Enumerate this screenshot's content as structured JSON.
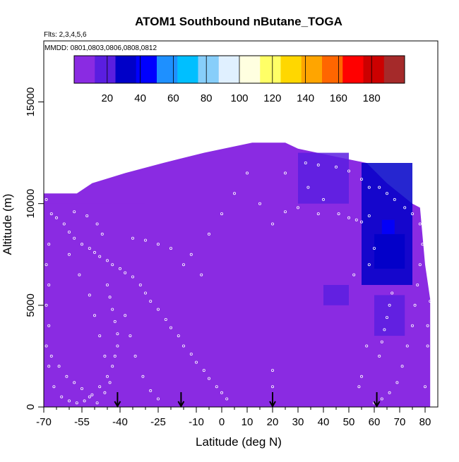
{
  "chart_data": {
    "type": "heatmap",
    "title": "ATOM1 Southbound nButane_TOGA",
    "flights_label": "Flts: 2,3,4,5,6",
    "dates_label": "MMDD: 0801,0803,0806,0808,0812",
    "xlabel": "Latitude (deg N)",
    "ylabel": "Altitude (m)",
    "xlim": [
      -70,
      85
    ],
    "ylim": [
      0,
      18000
    ],
    "x_ticks": [
      -70,
      -55,
      -40,
      -25,
      -10,
      0,
      10,
      20,
      30,
      40,
      50,
      60,
      70,
      80
    ],
    "x_minor_ticks": [
      -65,
      -60,
      -50,
      -45,
      -35,
      -30,
      -20,
      -15,
      -5,
      5,
      15,
      25,
      35,
      45,
      55,
      65,
      75
    ],
    "y_ticks": [
      0,
      5000,
      10000,
      15000
    ],
    "colorbar": {
      "min": 0,
      "max": 200,
      "tick_values": [
        20,
        40,
        60,
        80,
        100,
        120,
        140,
        160,
        180
      ],
      "colors": [
        "#8a2be2",
        "#5a1ee0",
        "#0000c8",
        "#0000ff",
        "#1e90ff",
        "#00bfff",
        "#87cefa",
        "#e0f0ff",
        "#ffffe0",
        "#ffff66",
        "#ffd700",
        "#ffa500",
        "#ff6600",
        "#ff0000",
        "#cc0000",
        "#a52a2a"
      ]
    },
    "profile_top": [
      [
        -70,
        10500
      ],
      [
        -57,
        10500
      ],
      [
        -51,
        11000
      ],
      [
        -38,
        11500
      ],
      [
        -23,
        12000
      ],
      [
        -7,
        12500
      ],
      [
        12,
        13000
      ],
      [
        25,
        13000
      ],
      [
        30,
        12700
      ],
      [
        45,
        12300
      ],
      [
        57,
        12000
      ],
      [
        61,
        11500
      ],
      [
        65,
        11000
      ],
      [
        70,
        10500
      ],
      [
        75,
        10000
      ],
      [
        78,
        9800
      ],
      [
        80,
        7000
      ],
      [
        82,
        5300
      ],
      [
        82,
        0
      ]
    ],
    "regions": [
      {
        "name": "background",
        "value": 8,
        "polygon": "profile"
      },
      {
        "name": "south-low-band",
        "value": 12,
        "x": [
          -70,
          -30
        ],
        "y": [
          0,
          10000
        ]
      },
      {
        "name": "mid-upper-blue",
        "value": 18,
        "x": [
          30,
          50
        ],
        "y": [
          10000,
          12500
        ]
      },
      {
        "name": "north-upper-blue",
        "value": 25,
        "x": [
          55,
          75
        ],
        "y": [
          6000,
          12000
        ]
      },
      {
        "name": "north-core",
        "value": 30,
        "x": [
          60,
          72
        ],
        "y": [
          6800,
          8500
        ]
      },
      {
        "name": "mid-layer-blue",
        "value": 24,
        "x": [
          40,
          50
        ],
        "y": [
          5000,
          6000
        ]
      },
      {
        "name": "north-lower-blue",
        "value": 22,
        "x": [
          60,
          72
        ],
        "y": [
          3500,
          5500
        ]
      },
      {
        "name": "north-core-light",
        "value": 45,
        "x": [
          63,
          68
        ],
        "y": [
          8500,
          9200
        ]
      }
    ],
    "flight_markers_latitude": [
      -41,
      -16,
      20,
      61
    ],
    "sample_points": [
      [
        -69,
        10200
      ],
      [
        -67,
        9500
      ],
      [
        -65,
        9300
      ],
      [
        -62,
        9000
      ],
      [
        -60,
        8600
      ],
      [
        -58,
        8300
      ],
      [
        -55,
        8000
      ],
      [
        -52,
        7800
      ],
      [
        -50,
        7600
      ],
      [
        -48,
        7400
      ],
      [
        -45,
        7200
      ],
      [
        -43,
        7000
      ],
      [
        -40,
        6800
      ],
      [
        -38,
        6600
      ],
      [
        -35,
        6400
      ],
      [
        -32,
        6000
      ],
      [
        -30,
        5600
      ],
      [
        -28,
        5200
      ],
      [
        -25,
        4800
      ],
      [
        -22,
        4300
      ],
      [
        -20,
        3900
      ],
      [
        -17,
        3500
      ],
      [
        -15,
        3000
      ],
      [
        -12,
        2600
      ],
      [
        -10,
        2200
      ],
      [
        -7,
        1800
      ],
      [
        -5,
        1400
      ],
      [
        -2,
        1000
      ],
      [
        0,
        700
      ],
      [
        2,
        400
      ],
      [
        -68,
        8000
      ],
      [
        -68,
        6000
      ],
      [
        -68,
        4000
      ],
      [
        -68,
        2000
      ],
      [
        -66,
        1000
      ],
      [
        -63,
        500
      ],
      [
        -60,
        300
      ],
      [
        -57,
        200
      ],
      [
        -54,
        300
      ],
      [
        -51,
        600
      ],
      [
        -48,
        1000
      ],
      [
        -45,
        1500
      ],
      [
        -43,
        2000
      ],
      [
        -42,
        2500
      ],
      [
        -41,
        3000
      ],
      [
        -41,
        3600
      ],
      [
        -42,
        4200
      ],
      [
        -43,
        4800
      ],
      [
        -44,
        5400
      ],
      [
        -45,
        6000
      ],
      [
        -47,
        8500
      ],
      [
        -49,
        9000
      ],
      [
        -53,
        9400
      ],
      [
        -58,
        9600
      ],
      [
        -60,
        7500
      ],
      [
        -56,
        6500
      ],
      [
        -52,
        5500
      ],
      [
        -50,
        4500
      ],
      [
        -48,
        3500
      ],
      [
        -46,
        2500
      ],
      [
        -38,
        4500
      ],
      [
        -36,
        3500
      ],
      [
        -34,
        2500
      ],
      [
        -31,
        1500
      ],
      [
        -28,
        800
      ],
      [
        -25,
        400
      ],
      [
        -12,
        7500
      ],
      [
        -5,
        8500
      ],
      [
        0,
        9500
      ],
      [
        5,
        10500
      ],
      [
        10,
        11500
      ],
      [
        15,
        10000
      ],
      [
        20,
        9000
      ],
      [
        25,
        9600
      ],
      [
        30,
        9800
      ],
      [
        34,
        10800
      ],
      [
        38,
        9500
      ],
      [
        40,
        10200
      ],
      [
        46,
        9500
      ],
      [
        50,
        9300
      ],
      [
        53,
        9200
      ],
      [
        55,
        9100
      ],
      [
        58,
        9400
      ],
      [
        62,
        10800
      ],
      [
        65,
        10500
      ],
      [
        68,
        10200
      ],
      [
        72,
        9800
      ],
      [
        75,
        9500
      ],
      [
        78,
        9000
      ],
      [
        79,
        8000
      ],
      [
        78,
        7000
      ],
      [
        77,
        6000
      ],
      [
        76,
        5000
      ],
      [
        75,
        4000
      ],
      [
        73,
        3000
      ],
      [
        71,
        2000
      ],
      [
        69,
        1200
      ],
      [
        66,
        700
      ],
      [
        63,
        400
      ],
      [
        60,
        200
      ],
      [
        62,
        2500
      ],
      [
        63,
        3200
      ],
      [
        64,
        3800
      ],
      [
        65,
        4400
      ],
      [
        66,
        5000
      ],
      [
        67,
        5600
      ],
      [
        60,
        7800
      ],
      [
        58,
        7000
      ],
      [
        52,
        6500
      ],
      [
        55,
        1500
      ],
      [
        54,
        1000
      ],
      [
        57,
        3000
      ],
      [
        80,
        1000
      ],
      [
        81,
        3000
      ],
      [
        81,
        4000
      ],
      [
        82,
        5200
      ],
      [
        20,
        1800
      ],
      [
        20,
        1000
      ],
      [
        25,
        11500
      ],
      [
        26,
        13100
      ],
      [
        33,
        12000
      ],
      [
        38,
        11900
      ],
      [
        45,
        11800
      ],
      [
        50,
        11600
      ],
      [
        55,
        11200
      ],
      [
        58,
        10800
      ],
      [
        -69,
        7000
      ],
      [
        -69,
        5000
      ],
      [
        -69,
        3000
      ],
      [
        -67,
        2500
      ],
      [
        -64,
        2000
      ],
      [
        -61,
        1500
      ],
      [
        -58,
        1200
      ],
      [
        -55,
        900
      ],
      [
        -52,
        500
      ],
      [
        -49,
        200
      ],
      [
        -46,
        700
      ],
      [
        -44,
        1200
      ],
      [
        -35,
        8300
      ],
      [
        -30,
        8200
      ],
      [
        -25,
        8000
      ],
      [
        -20,
        7800
      ],
      [
        -15,
        7000
      ],
      [
        -8,
        6500
      ]
    ]
  }
}
